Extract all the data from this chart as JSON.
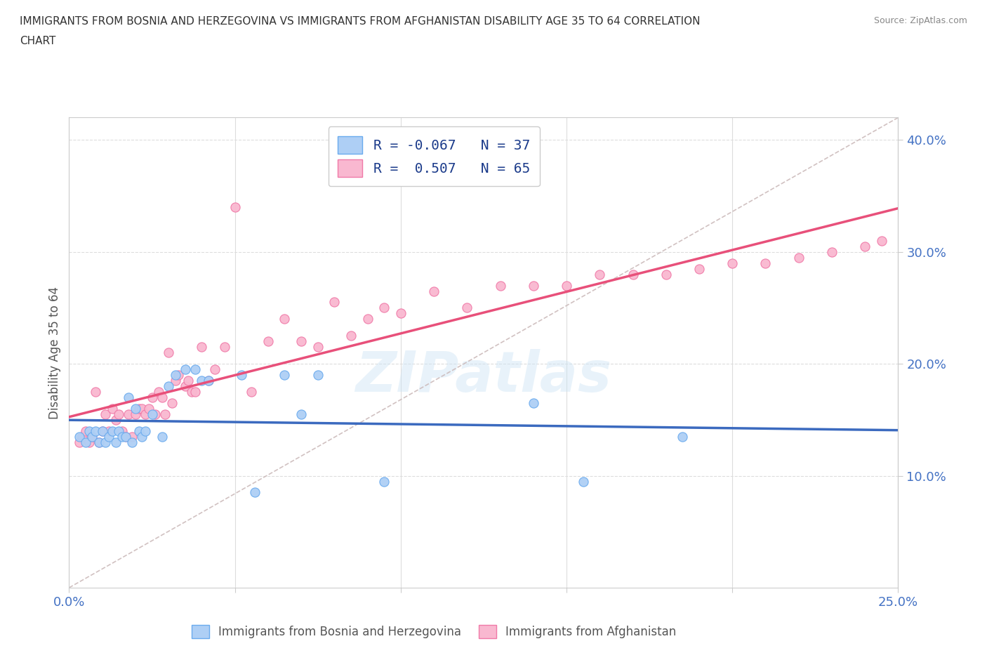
{
  "title_line1": "IMMIGRANTS FROM BOSNIA AND HERZEGOVINA VS IMMIGRANTS FROM AFGHANISTAN DISABILITY AGE 35 TO 64 CORRELATION",
  "title_line2": "CHART",
  "source_text": "Source: ZipAtlas.com",
  "ylabel": "Disability Age 35 to 64",
  "xlim": [
    0.0,
    0.25
  ],
  "ylim": [
    0.0,
    0.42
  ],
  "xticks": [
    0.0,
    0.05,
    0.1,
    0.15,
    0.2,
    0.25
  ],
  "yticks": [
    0.1,
    0.2,
    0.3,
    0.4
  ],
  "bosnia_color": "#aecff5",
  "afghanistan_color": "#f9b8d0",
  "bosnia_edge": "#6aabee",
  "afghanistan_edge": "#f07aa8",
  "regression_blue": "#3b6abf",
  "regression_pink": "#e8507a",
  "diagonal_color": "#ccbbbb",
  "legend_bosnia_label": "R = -0.067   N = 37",
  "legend_afghanistan_label": "R =  0.507   N = 65",
  "legend_bottom_bosnia": "Immigrants from Bosnia and Herzegovina",
  "legend_bottom_afghanistan": "Immigrants from Afghanistan",
  "watermark": "ZIPatlas",
  "bosnia_x": [
    0.003,
    0.005,
    0.006,
    0.007,
    0.008,
    0.009,
    0.01,
    0.011,
    0.012,
    0.013,
    0.014,
    0.015,
    0.016,
    0.017,
    0.018,
    0.019,
    0.02,
    0.021,
    0.022,
    0.023,
    0.025,
    0.028,
    0.03,
    0.032,
    0.035,
    0.038,
    0.04,
    0.042,
    0.052,
    0.056,
    0.065,
    0.07,
    0.075,
    0.095,
    0.14,
    0.155,
    0.185
  ],
  "bosnia_y": [
    0.135,
    0.13,
    0.14,
    0.135,
    0.14,
    0.13,
    0.14,
    0.13,
    0.135,
    0.14,
    0.13,
    0.14,
    0.135,
    0.135,
    0.17,
    0.13,
    0.16,
    0.14,
    0.135,
    0.14,
    0.155,
    0.135,
    0.18,
    0.19,
    0.195,
    0.195,
    0.185,
    0.185,
    0.19,
    0.085,
    0.19,
    0.155,
    0.19,
    0.095,
    0.165,
    0.095,
    0.135
  ],
  "afghanistan_x": [
    0.003,
    0.004,
    0.005,
    0.006,
    0.007,
    0.008,
    0.009,
    0.01,
    0.011,
    0.012,
    0.013,
    0.014,
    0.015,
    0.016,
    0.017,
    0.018,
    0.019,
    0.02,
    0.021,
    0.022,
    0.023,
    0.024,
    0.025,
    0.026,
    0.027,
    0.028,
    0.029,
    0.03,
    0.031,
    0.032,
    0.033,
    0.035,
    0.036,
    0.037,
    0.038,
    0.04,
    0.042,
    0.044,
    0.047,
    0.05,
    0.055,
    0.06,
    0.065,
    0.07,
    0.075,
    0.08,
    0.085,
    0.09,
    0.095,
    0.1,
    0.11,
    0.12,
    0.13,
    0.14,
    0.15,
    0.16,
    0.17,
    0.18,
    0.19,
    0.2,
    0.21,
    0.22,
    0.23,
    0.24,
    0.245
  ],
  "afghanistan_y": [
    0.13,
    0.135,
    0.14,
    0.13,
    0.135,
    0.175,
    0.13,
    0.14,
    0.155,
    0.14,
    0.16,
    0.15,
    0.155,
    0.14,
    0.135,
    0.155,
    0.135,
    0.155,
    0.16,
    0.16,
    0.155,
    0.16,
    0.17,
    0.155,
    0.175,
    0.17,
    0.155,
    0.21,
    0.165,
    0.185,
    0.19,
    0.18,
    0.185,
    0.175,
    0.175,
    0.215,
    0.185,
    0.195,
    0.215,
    0.34,
    0.175,
    0.22,
    0.24,
    0.22,
    0.215,
    0.255,
    0.225,
    0.24,
    0.25,
    0.245,
    0.265,
    0.25,
    0.27,
    0.27,
    0.27,
    0.28,
    0.28,
    0.28,
    0.285,
    0.29,
    0.29,
    0.295,
    0.3,
    0.305,
    0.31
  ],
  "grid_color": "#dddddd",
  "bg_color": "#ffffff",
  "tick_label_color": "#4472c4",
  "title_color": "#333333",
  "source_color": "#888888",
  "ylabel_color": "#555555"
}
